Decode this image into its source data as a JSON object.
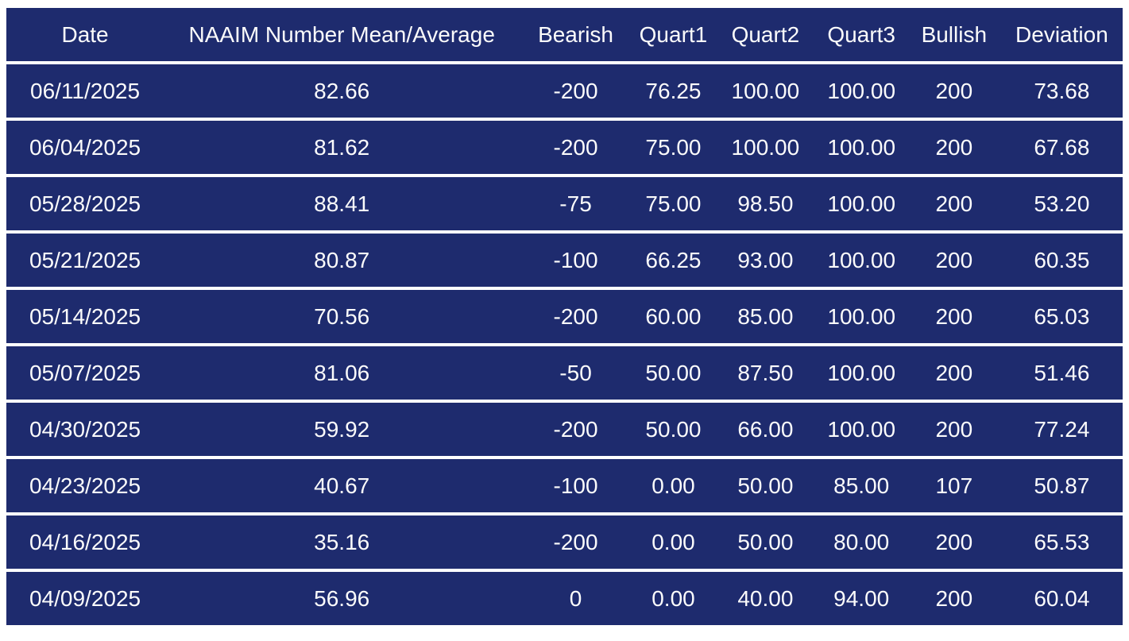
{
  "colors": {
    "row_background": "#1e2b6e",
    "separator": "#ffffff",
    "text": "#fbfbfb"
  },
  "chart_data": {
    "type": "table",
    "columns": [
      "Date",
      "NAAIM Number Mean/Average",
      "Bearish",
      "Quart1",
      "Quart2",
      "Quart3",
      "Bullish",
      "Deviation"
    ],
    "rows": [
      [
        "06/11/2025",
        "82.66",
        "-200",
        "76.25",
        "100.00",
        "100.00",
        "200",
        "73.68"
      ],
      [
        "06/04/2025",
        "81.62",
        "-200",
        "75.00",
        "100.00",
        "100.00",
        "200",
        "67.68"
      ],
      [
        "05/28/2025",
        "88.41",
        "-75",
        "75.00",
        "98.50",
        "100.00",
        "200",
        "53.20"
      ],
      [
        "05/21/2025",
        "80.87",
        "-100",
        "66.25",
        "93.00",
        "100.00",
        "200",
        "60.35"
      ],
      [
        "05/14/2025",
        "70.56",
        "-200",
        "60.00",
        "85.00",
        "100.00",
        "200",
        "65.03"
      ],
      [
        "05/07/2025",
        "81.06",
        "-50",
        "50.00",
        "87.50",
        "100.00",
        "200",
        "51.46"
      ],
      [
        "04/30/2025",
        "59.92",
        "-200",
        "50.00",
        "66.00",
        "100.00",
        "200",
        "77.24"
      ],
      [
        "04/23/2025",
        "40.67",
        "-100",
        "0.00",
        "50.00",
        "85.00",
        "107",
        "50.87"
      ],
      [
        "04/16/2025",
        "35.16",
        "-200",
        "0.00",
        "50.00",
        "80.00",
        "200",
        "65.53"
      ],
      [
        "04/09/2025",
        "56.96",
        "0",
        "0.00",
        "40.00",
        "94.00",
        "200",
        "60.04"
      ]
    ]
  }
}
